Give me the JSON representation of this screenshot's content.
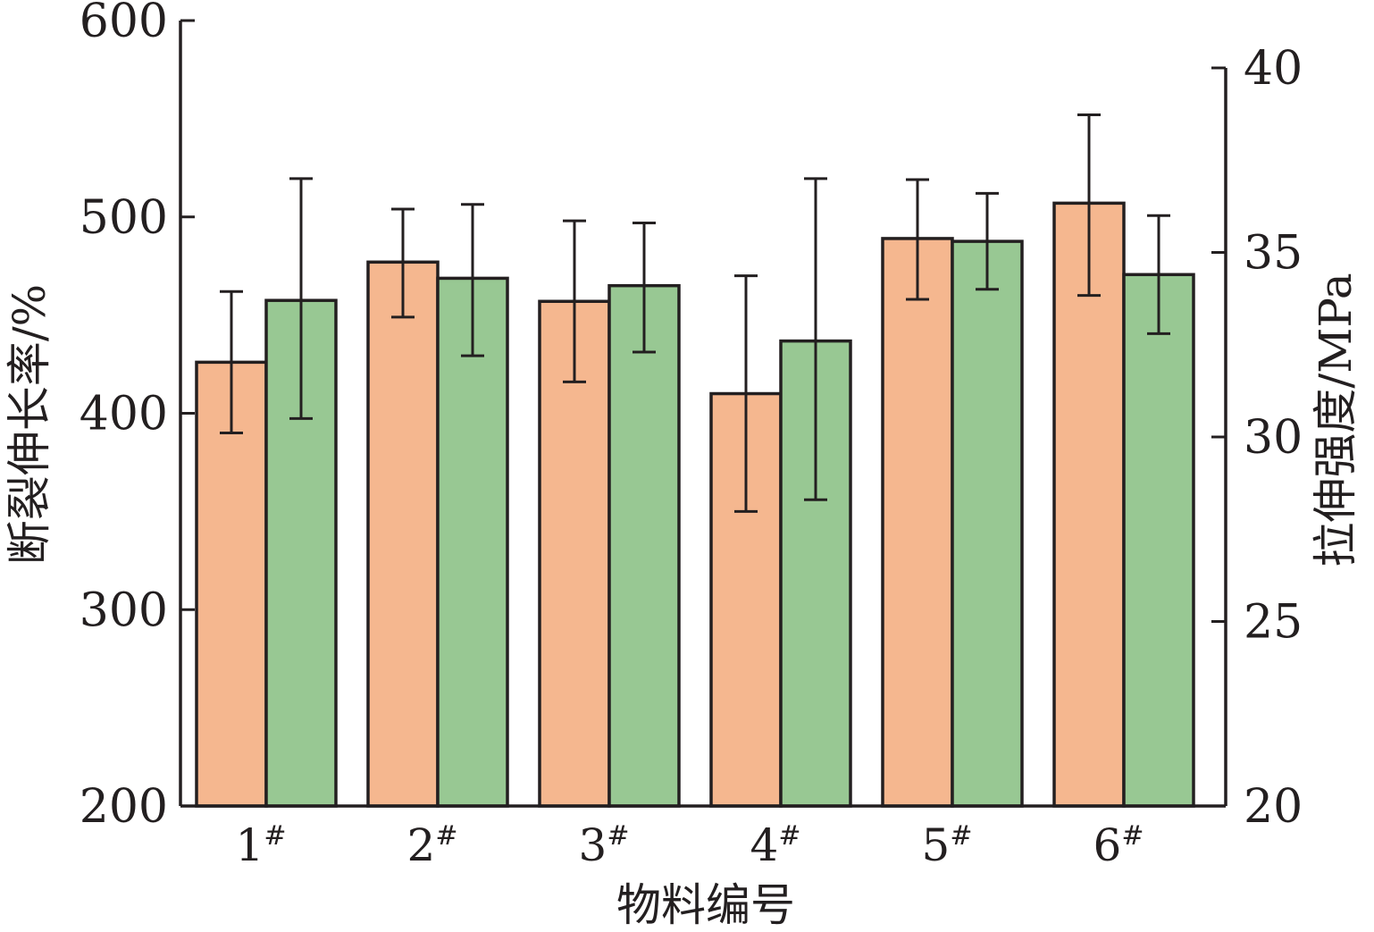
{
  "chart_data": {
    "type": "bar",
    "categories": [
      "1",
      "2",
      "3",
      "4",
      "5",
      "6"
    ],
    "category_suffix": "#",
    "xlabel": "物料编号",
    "ylabel_left": "断裂伸长率/%",
    "ylabel_right": "拉伸强度/MPa",
    "ylim_left": [
      200,
      600
    ],
    "ylim_right": [
      20,
      40
    ],
    "yticks_left": [
      "200",
      "300",
      "400",
      "500",
      "600"
    ],
    "yticks_right": [
      "20",
      "25",
      "30",
      "35",
      "40"
    ],
    "grid": false,
    "legend": "none",
    "series": [
      {
        "axis": "left",
        "color": "#f5b78f",
        "values": [
          426,
          477,
          457,
          410,
          489,
          507
        ],
        "err_low": [
          390,
          449,
          416,
          350,
          458,
          460
        ],
        "err_high": [
          462,
          504,
          498,
          470,
          519,
          552
        ]
      },
      {
        "axis": "right",
        "color": "#98c893",
        "values": [
          33.7,
          34.3,
          34.1,
          32.6,
          35.3,
          34.4
        ],
        "err_low": [
          30.5,
          32.2,
          32.3,
          28.3,
          34.0,
          32.8
        ],
        "err_high": [
          37.0,
          36.3,
          35.8,
          37.0,
          36.6,
          36.0
        ]
      }
    ]
  }
}
